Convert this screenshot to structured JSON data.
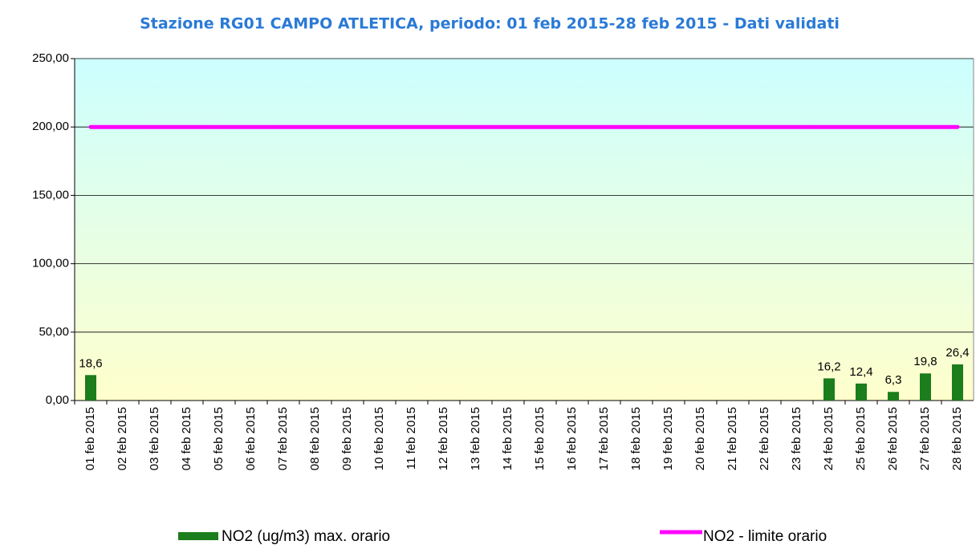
{
  "chart_data": {
    "type": "bar",
    "title": "Stazione RG01 CAMPO ATLETICA, periodo: 01 feb 2015-28 feb 2015 - Dati validati",
    "categories": [
      "01 feb 2015",
      "02 feb 2015",
      "03 feb 2015",
      "04 feb 2015",
      "05 feb 2015",
      "06 feb 2015",
      "07 feb 2015",
      "08 feb 2015",
      "09 feb 2015",
      "10 feb 2015",
      "11 feb 2015",
      "12 feb 2015",
      "13 feb 2015",
      "14 feb 2015",
      "15 feb 2015",
      "16 feb 2015",
      "17 feb 2015",
      "18 feb 2015",
      "19 feb 2015",
      "20 feb 2015",
      "21 feb 2015",
      "22 feb 2015",
      "23 feb 2015",
      "24 feb 2015",
      "25 feb 2015",
      "26 feb 2015",
      "27 feb 2015",
      "28 feb 2015"
    ],
    "series": [
      {
        "name": "NO2 (ug/m3) max. orario",
        "type": "bar",
        "color": "#1b7d1b",
        "values": [
          18.6,
          null,
          null,
          null,
          null,
          null,
          null,
          null,
          null,
          null,
          null,
          null,
          null,
          null,
          null,
          null,
          null,
          null,
          null,
          null,
          null,
          null,
          null,
          16.2,
          12.4,
          6.3,
          19.8,
          26.4
        ],
        "value_labels": [
          "18,6",
          null,
          null,
          null,
          null,
          null,
          null,
          null,
          null,
          null,
          null,
          null,
          null,
          null,
          null,
          null,
          null,
          null,
          null,
          null,
          null,
          null,
          null,
          "16,2",
          "12,4",
          "6,3",
          "19,8",
          "26,4"
        ]
      },
      {
        "name": "NO2 - limite orario",
        "type": "line",
        "color": "#ff00ff",
        "values": [
          200,
          200,
          200,
          200,
          200,
          200,
          200,
          200,
          200,
          200,
          200,
          200,
          200,
          200,
          200,
          200,
          200,
          200,
          200,
          200,
          200,
          200,
          200,
          200,
          200,
          200,
          200,
          200
        ]
      }
    ],
    "ylim": [
      0,
      250
    ],
    "yticks": [
      {
        "value": 0,
        "label": "0,00"
      },
      {
        "value": 50,
        "label": "50,00"
      },
      {
        "value": 100,
        "label": "100,00"
      },
      {
        "value": 150,
        "label": "150,00"
      },
      {
        "value": 200,
        "label": "200,00"
      },
      {
        "value": 250,
        "label": "250,00"
      }
    ],
    "grid": true
  }
}
